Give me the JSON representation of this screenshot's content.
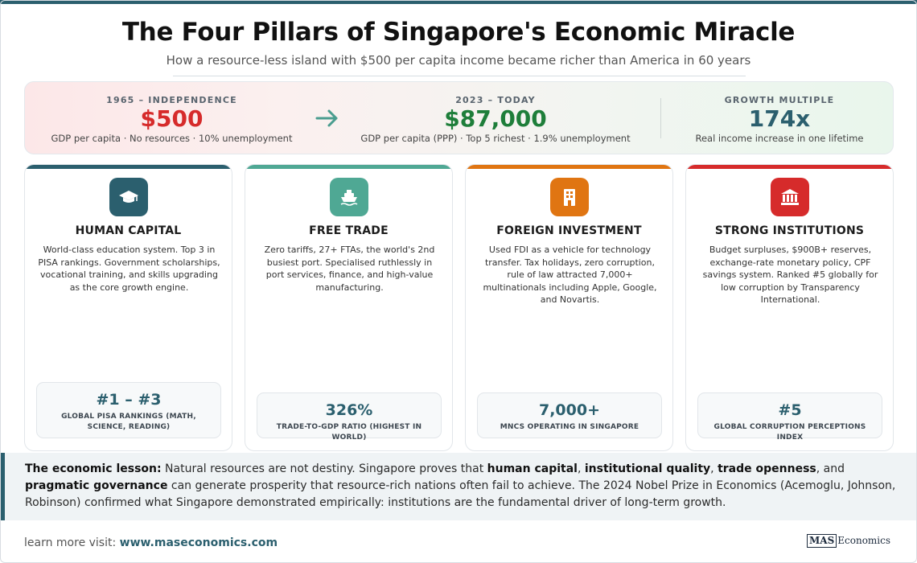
{
  "header": {
    "title": "The Four Pillars of Singapore's Economic Miracle",
    "subtitle": "How a resource-less island with $500 per capita income became richer than America in 60 years"
  },
  "stats": {
    "then": {
      "label": "1965 – INDEPENDENCE",
      "value": "$500",
      "desc": "GDP per capita · No resources · 10% unemployment",
      "color": "#d62b2b"
    },
    "now": {
      "label": "2023 – TODAY",
      "value": "$87,000",
      "desc": "GDP per capita (PPP) · Top 5 richest · 1.9% unemployment",
      "color": "#1e7e3a"
    },
    "growth": {
      "label": "GROWTH MULTIPLE",
      "value": "174x",
      "desc": "Real income increase in one lifetime",
      "color": "#2b5f6e"
    },
    "arrow_icon": "arrow-right-icon",
    "arrow_color": "#4a9d8f"
  },
  "pillars": [
    {
      "title": "HUMAN CAPITAL",
      "icon": "graduation-cap-icon",
      "color": "#2b5f6e",
      "text": "World-class education system. Top 3 in PISA rankings. Government scholarships, vocational training, and skills upgrading as the core growth engine.",
      "metric_value": "#1 – #3",
      "metric_label": "GLOBAL PISA RANKINGS (MATH, SCIENCE, READING)"
    },
    {
      "title": "FREE TRADE",
      "icon": "ship-icon",
      "color": "#4fa894",
      "text": "Zero tariffs, 27+ FTAs, the world's 2nd busiest port. Specialised ruthlessly in port services, finance, and high-value manufacturing.",
      "metric_value": "326%",
      "metric_label": "TRADE-TO-GDP RATIO (HIGHEST IN WORLD)"
    },
    {
      "title": "FOREIGN INVESTMENT",
      "icon": "building-icon",
      "color": "#e07512",
      "text": "Used FDI as a vehicle for technology transfer. Tax holidays, zero corruption, rule of law attracted 7,000+ multinationals including Apple, Google, and Novartis.",
      "metric_value": "7,000+",
      "metric_label": "MNCS OPERATING IN SINGAPORE"
    },
    {
      "title": "STRONG INSTITUTIONS",
      "icon": "institution-icon",
      "color": "#d62b2b",
      "text": "Budget surpluses, $900B+ reserves, exchange-rate monetary policy, CPF savings system. Ranked #5 globally for low corruption by Transparency International.",
      "metric_value": "#5",
      "metric_label": "GLOBAL CORRUPTION PERCEPTIONS INDEX"
    }
  ],
  "lesson": {
    "lead": "The economic lesson:",
    "t1": " Natural resources are not destiny. Singapore proves that ",
    "b1": "human capital",
    "t2": ", ",
    "b2": "institutional quality",
    "t3": ", ",
    "b3": "trade openness",
    "t4": ", and ",
    "b4": "pragmatic governance",
    "t5": " can generate prosperity that resource-rich nations often fail to achieve. The 2024 Nobel Prize in Economics (Acemoglu, Johnson, Robinson) confirmed what Singapore demonstrated empirically: institutions are the fundamental driver of long-term growth."
  },
  "footer": {
    "prefix": "learn more visit: ",
    "url": "www.maseconomics.com",
    "brand_mark": "MAS",
    "brand_name": "Economics"
  }
}
